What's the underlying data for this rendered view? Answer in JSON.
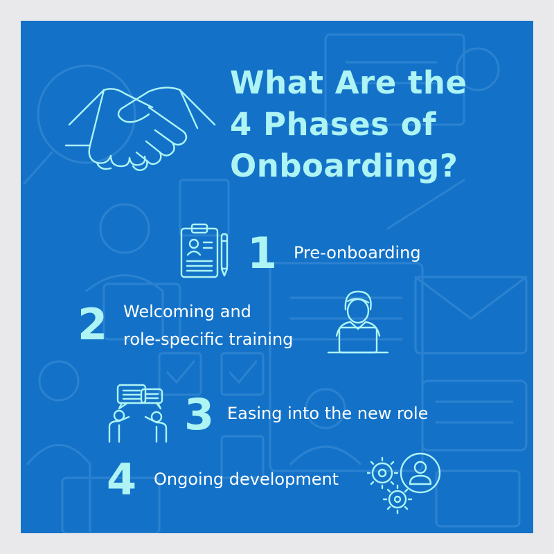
{
  "title": {
    "line1": "What Are the",
    "line2": "4 Phases of",
    "line3": "Onboarding?"
  },
  "phases": [
    {
      "number": "1",
      "label": "Pre-onboarding",
      "icon": "clipboard-icon"
    },
    {
      "number": "2",
      "label_line1": "Welcoming and",
      "label_line2": "role-specific training",
      "icon": "person-at-laptop-icon"
    },
    {
      "number": "3",
      "label": "Easing into the new role",
      "icon": "people-conversation-icon"
    },
    {
      "number": "4",
      "label": "Ongoing development",
      "icon": "gears-person-icon"
    }
  ],
  "colors": {
    "page_background": "#e9e9eb",
    "card_background": "#1372c8",
    "accent": "#aef4f4",
    "text": "#ffffff"
  }
}
